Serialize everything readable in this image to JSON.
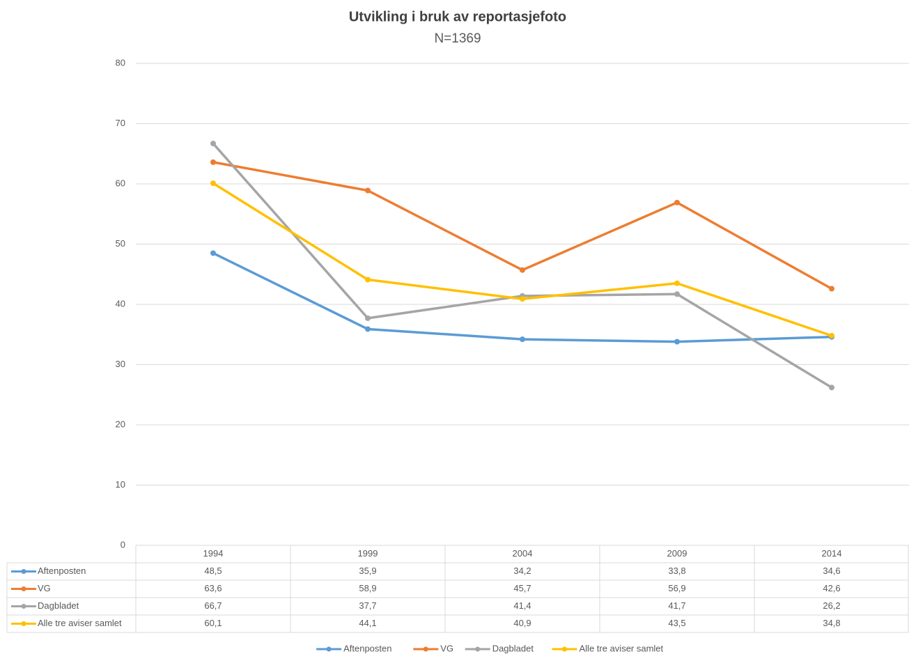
{
  "chart_data": {
    "type": "line",
    "title": "Utvikling i bruk av reportasjefoto",
    "subtitle": "N=1369",
    "categories": [
      "1994",
      "1999",
      "2004",
      "2009",
      "2014"
    ],
    "series": [
      {
        "name": "Aftenposten",
        "color": "#5b9bd5",
        "values": [
          48.5,
          35.9,
          34.2,
          33.8,
          34.6
        ],
        "value_labels": [
          "48,5",
          "35,9",
          "34,2",
          "33,8",
          "34,6"
        ]
      },
      {
        "name": "VG",
        "color": "#ed7d31",
        "values": [
          63.6,
          58.9,
          45.7,
          56.9,
          42.6
        ],
        "value_labels": [
          "63,6",
          "58,9",
          "45,7",
          "56,9",
          "42,6"
        ]
      },
      {
        "name": "Dagbladet",
        "color": "#a5a5a5",
        "values": [
          66.7,
          37.7,
          41.4,
          41.7,
          26.2
        ],
        "value_labels": [
          "66,7",
          "37,7",
          "41,4",
          "41,7",
          "26,2"
        ]
      },
      {
        "name": "Alle tre aviser samlet",
        "color": "#ffc000",
        "values": [
          60.1,
          44.1,
          40.9,
          43.5,
          34.8
        ],
        "value_labels": [
          "60,1",
          "44,1",
          "40,9",
          "43,5",
          "34,8"
        ]
      }
    ],
    "ylim": [
      0,
      80
    ],
    "yticks": [
      0,
      10,
      20,
      30,
      40,
      50,
      60,
      70,
      80
    ],
    "grid": true,
    "legend": "bottom"
  }
}
